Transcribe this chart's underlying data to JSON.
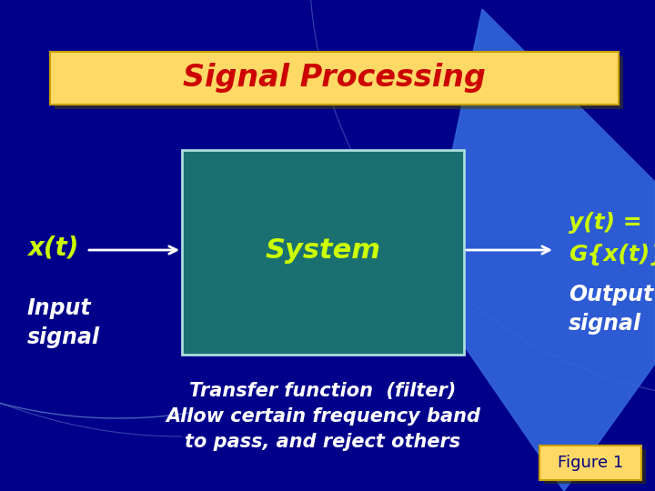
{
  "bg_color": "#00008B",
  "title_text": "Signal Processing",
  "title_bg": "#FFD966",
  "title_color": "#CC0000",
  "title_edge": "#C8A000",
  "box_color": "#1A7070",
  "box_border": "#AADDDD",
  "system_text": "System",
  "system_color": "#CCFF00",
  "xt_text": "x(t)",
  "xt_color": "#CCFF00",
  "yt_line1": "y(t) =",
  "yt_line2": "G{x(t)}",
  "yt_color": "#CCFF00",
  "input_text": "Input\nsignal",
  "input_color": "#FFFFFF",
  "output_text": "Output\nsignal",
  "output_color": "#FFFFFF",
  "transfer_line1": "Transfer function  (filter)",
  "transfer_line2": "Allow certain frequency band",
  "transfer_line3": "to pass, and reject others",
  "transfer_color": "#FFFFFF",
  "figure_text": "Figure 1",
  "figure_bg": "#FFD966",
  "figure_color": "#000080",
  "arrow_color": "#FFFFFF",
  "blue_shape_color": "#3366DD",
  "arc_color": "#6688CC"
}
